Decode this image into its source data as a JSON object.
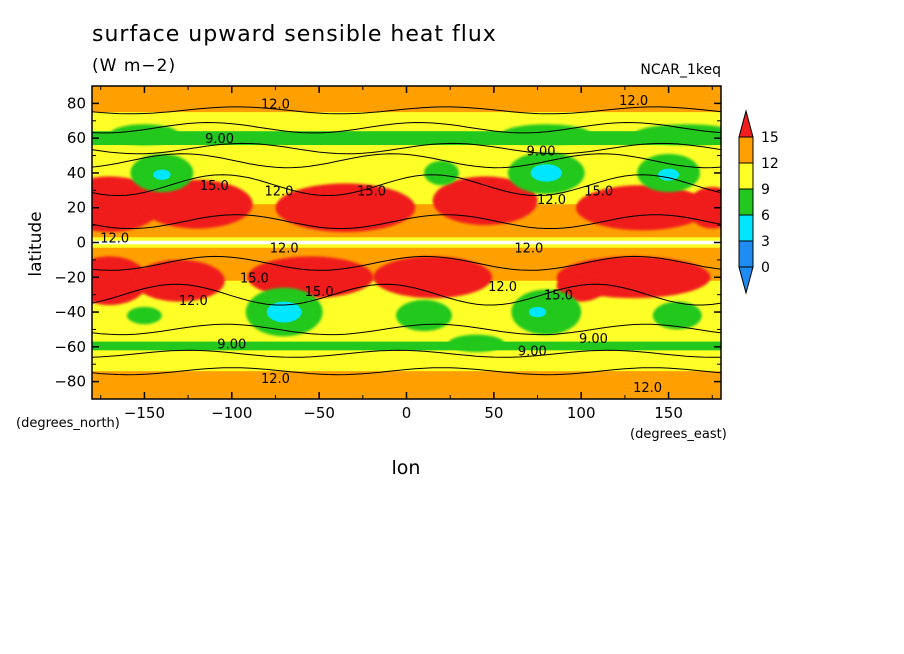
{
  "chart_data": {
    "type": "heatmap",
    "title": "surface upward sensible heat flux",
    "units": "(W m−2)",
    "dataset": "NCAR_1keq",
    "xlabel": "lon",
    "ylabel": "latitude",
    "x_units": "(degrees_east)",
    "y_units": "(degrees_north)",
    "xlim": [
      -180,
      180
    ],
    "ylim": [
      -90,
      90
    ],
    "x_ticks": [
      -150,
      -100,
      -50,
      0,
      50,
      100,
      150
    ],
    "x_tick_labels": [
      "−150",
      "−100",
      "−50",
      "0",
      "50",
      "100",
      "150"
    ],
    "y_ticks": [
      -80,
      -60,
      -40,
      -20,
      0,
      20,
      40,
      60,
      80
    ],
    "y_tick_labels": [
      "−80",
      "−60",
      "−40",
      "−20",
      "0",
      "20",
      "40",
      "60",
      "80"
    ],
    "colorbar": {
      "levels": [
        0,
        3,
        6,
        9,
        12,
        15
      ],
      "labels": [
        "15",
        "12",
        "9",
        "6",
        "3",
        "0"
      ],
      "colors": [
        "#1e8cf0",
        "#00e6ff",
        "#22c81e",
        "#ffff28",
        "#ffa000",
        "#f01e1e"
      ]
    },
    "contour_labels": [
      {
        "text": "12.0",
        "lon": -75,
        "lat": 80
      },
      {
        "text": "12.0",
        "lon": 130,
        "lat": 82
      },
      {
        "text": "9.00",
        "lon": -107,
        "lat": 60
      },
      {
        "text": "9.00",
        "lon": 77,
        "lat": 53
      },
      {
        "text": "15.0",
        "lon": -110,
        "lat": 33
      },
      {
        "text": "12.0",
        "lon": -73,
        "lat": 30
      },
      {
        "text": "15.0",
        "lon": -20,
        "lat": 30
      },
      {
        "text": "12.0",
        "lon": 83,
        "lat": 25
      },
      {
        "text": "15.0",
        "lon": 110,
        "lat": 30
      },
      {
        "text": "12.0",
        "lon": -167,
        "lat": 3
      },
      {
        "text": "12.0",
        "lon": -70,
        "lat": -3
      },
      {
        "text": "12.0",
        "lon": 70,
        "lat": -3
      },
      {
        "text": "15.0",
        "lon": -87,
        "lat": -20
      },
      {
        "text": "15.0",
        "lon": -50,
        "lat": -28
      },
      {
        "text": "12.0",
        "lon": -122,
        "lat": -33
      },
      {
        "text": "12.0",
        "lon": 55,
        "lat": -25
      },
      {
        "text": "15.0",
        "lon": 87,
        "lat": -30
      },
      {
        "text": "9.00",
        "lon": -100,
        "lat": -58
      },
      {
        "text": "9.00",
        "lon": 72,
        "lat": -62
      },
      {
        "text": "9.00",
        "lon": 107,
        "lat": -55
      },
      {
        "text": "12.0",
        "lon": -75,
        "lat": -78
      },
      {
        "text": "12.0",
        "lon": 138,
        "lat": -83
      }
    ]
  }
}
